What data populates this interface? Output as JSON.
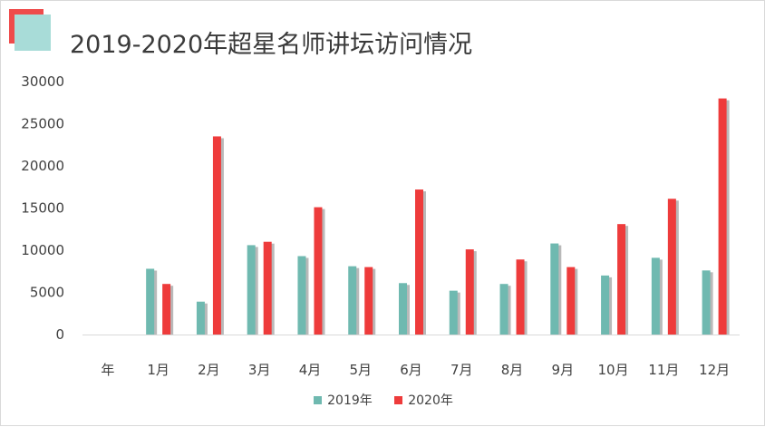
{
  "colors": {
    "series_2019": "#6fb9b0",
    "series_2020": "#ee3b3b",
    "axis": "#d9d9d9",
    "tick_text": "#404040"
  },
  "chart_data": {
    "type": "bar",
    "title": "2019-2020年超星名师讲坛访问情况",
    "categories": [
      "年",
      "1月",
      "2月",
      "3月",
      "4月",
      "5月",
      "6月",
      "7月",
      "8月",
      "9月",
      "10月",
      "11月",
      "12月"
    ],
    "series": [
      {
        "name": "2019年",
        "values": [
          null,
          7800,
          3900,
          10600,
          9300,
          8100,
          6100,
          5200,
          6000,
          10800,
          7000,
          9100,
          7600
        ]
      },
      {
        "name": "2020年",
        "values": [
          null,
          6000,
          23500,
          11000,
          15100,
          8000,
          17200,
          10100,
          8900,
          8000,
          13100,
          16100,
          28000
        ]
      }
    ],
    "ylim": [
      0,
      30000
    ],
    "yticks": [
      "30000",
      "25000",
      "20000",
      "15000",
      "10000",
      "5000",
      "0"
    ],
    "grid": false,
    "legend": "bottom"
  }
}
